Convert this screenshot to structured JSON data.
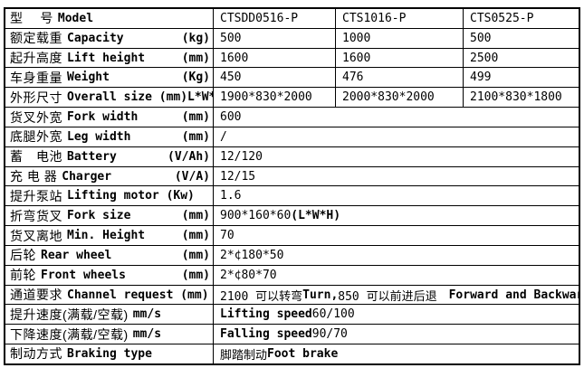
{
  "table": {
    "border_color": "#000000",
    "background_color": "#ffffff",
    "text_color": "#000000",
    "columns": 4,
    "rows": [
      {
        "label": {
          "zh": "型　  号",
          "en": "Model",
          "unit": ""
        },
        "cells": [
          "CTSDD0516-P",
          "CTS1016-P",
          "CTS0525-P"
        ]
      },
      {
        "label": {
          "zh": "额定载重",
          "en": "Capacity",
          "unit": "(kg)"
        },
        "cells": [
          "500",
          "1000",
          "500"
        ]
      },
      {
        "label": {
          "zh": "起升高度",
          "en": "Lift height",
          "unit": "(mm)"
        },
        "cells": [
          "1600",
          "1600",
          "2500"
        ]
      },
      {
        "label": {
          "zh": "车身重量",
          "en": "Weight",
          "unit": "(Kg)"
        },
        "cells": [
          "450",
          "476",
          "499"
        ]
      },
      {
        "label": {
          "zh": "外形尺寸",
          "en": "Overall size (mm)L*W*H",
          "unit": ""
        },
        "cells": [
          "1900*830*2000",
          "2000*830*2000",
          "2100*830*1800"
        ]
      },
      {
        "label": {
          "zh": "货叉外宽",
          "en": "Fork width",
          "unit": "(mm)"
        },
        "span": [
          {
            "t": "600"
          }
        ]
      },
      {
        "label": {
          "zh": "底腿外宽",
          "en": "Leg width",
          "unit": "(mm)"
        },
        "span": [
          {
            "t": "/"
          }
        ]
      },
      {
        "label": {
          "zh": "蓄　电池",
          "en": "Battery",
          "unit": "(V/Ah)"
        },
        "span": [
          {
            "t": "12/120"
          }
        ]
      },
      {
        "label": {
          "zh": "充 电 器",
          "en": "Charger",
          "unit": "(V/A)"
        },
        "span": [
          {
            "t": "12/15"
          }
        ]
      },
      {
        "label": {
          "zh": "提升泵站",
          "en": "Lifting motor (Kw)",
          "unit": ""
        },
        "span": [
          {
            "t": "1.6"
          }
        ]
      },
      {
        "label": {
          "zh": "折弯货叉",
          "en": "Fork size",
          "unit": "(mm)"
        },
        "span": [
          {
            "t": "900*160*60 "
          },
          {
            "t": "(L*W*H)",
            "b": true
          }
        ]
      },
      {
        "label": {
          "zh": "货叉离地",
          "en": "Min. Height",
          "unit": "(mm)"
        },
        "span": [
          {
            "t": "70"
          }
        ]
      },
      {
        "label": {
          "zh": "后轮",
          "en": "Rear wheel",
          "unit": "(mm)"
        },
        "span": [
          {
            "t": "2*¢180*50"
          }
        ]
      },
      {
        "label": {
          "zh": "前轮",
          "en": "Front wheels",
          "unit": "(mm)"
        },
        "span": [
          {
            "t": "2*¢80*70"
          }
        ]
      },
      {
        "label": {
          "zh": "通道要求",
          "en": "Channel request (mm)",
          "unit": ""
        },
        "span": [
          {
            "t": "2100 可以转弯 "
          },
          {
            "t": "Turn,",
            "b": true
          },
          {
            "t": " 850 可以前进后退　 "
          },
          {
            "t": "Forward and Backward",
            "b": true
          }
        ]
      },
      {
        "label": {
          "zh": "提升速度(满载/空载)",
          "en": "mm/s",
          "unit": ""
        },
        "span": [
          {
            "t": "Lifting speed",
            "b": true
          },
          {
            "t": "  60/100"
          }
        ]
      },
      {
        "label": {
          "zh": "下降速度(满载/空载)",
          "en": "mm/s",
          "unit": ""
        },
        "span": [
          {
            "t": "Falling speed",
            "b": true
          },
          {
            "t": "  90/70"
          }
        ]
      },
      {
        "label": {
          "zh": "制动方式",
          "en": "Braking type",
          "unit": ""
        },
        "span": [
          {
            "t": "脚踏制动 "
          },
          {
            "t": "Foot brake",
            "b": true
          }
        ]
      }
    ]
  }
}
